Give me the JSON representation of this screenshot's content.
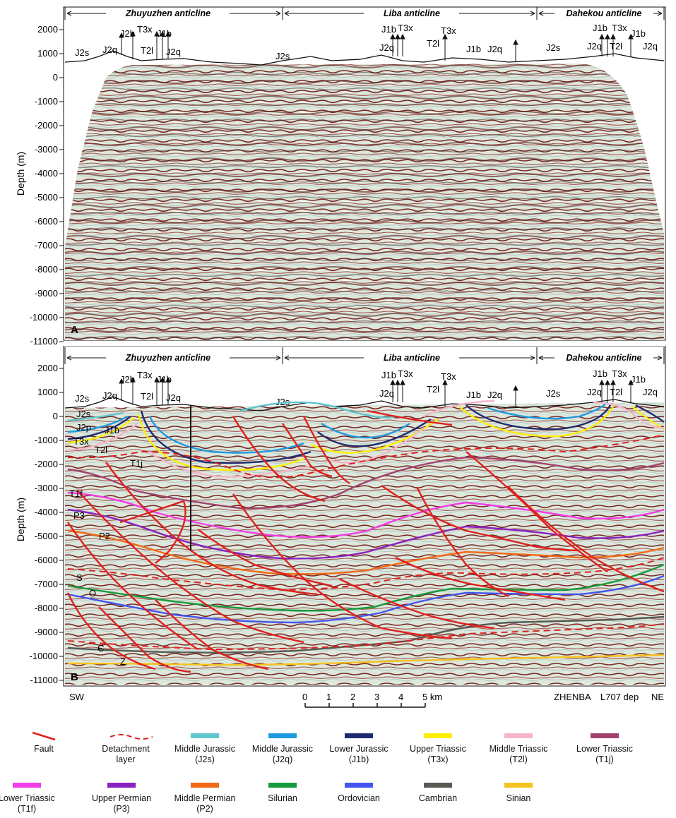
{
  "panels": {
    "a": {
      "letter": "A",
      "anticlines": [
        "Zhuyuzhen anticline",
        "Liba anticline",
        "Dahekou anticline"
      ],
      "strat_labels": [
        "J2s",
        "J2q",
        "J2b",
        "T3x",
        "T2l",
        "J1b",
        "J2q",
        "J2s",
        "J1b",
        "T3x",
        "J2q",
        "T2l",
        "T3x",
        "J1b",
        "J2q",
        "J2s",
        "J1b",
        "T3x",
        "J2q",
        "T2l",
        "J1b",
        "J2q"
      ]
    },
    "b": {
      "letter": "B",
      "anticlines": [
        "Zhuyuzhen anticline",
        "Liba anticline",
        "Dahekou anticline"
      ],
      "strat_labels": [
        "J2s",
        "J2q",
        "J2b",
        "T3x",
        "T2l",
        "J1b",
        "J2q",
        "J2s",
        "J1b",
        "T3x",
        "J2q",
        "T2l",
        "T3x",
        "J1b",
        "J2q",
        "J2s",
        "J1b",
        "T3x",
        "J2q",
        "T2l",
        "J1b",
        "J2q"
      ],
      "horizon_labels": [
        "J2s",
        "J2p",
        "J1b",
        "T3x",
        "T2l",
        "T1j",
        "T1f",
        "P3",
        "P2",
        "S",
        "O",
        "Є",
        "Z"
      ]
    }
  },
  "axis": {
    "ylabel": "Depth (m)",
    "ticks": [
      "2000",
      "1000",
      "0",
      "-1000",
      "-2000",
      "-3000",
      "-4000",
      "-5000",
      "-6000",
      "-7000",
      "-8000",
      "-9000",
      "-10000",
      "-11000"
    ]
  },
  "bottom_labels": {
    "sw": "SW",
    "ne": "NE",
    "zhenba": "ZHENBA",
    "l707": "L707 dep"
  },
  "scale_bar": {
    "ticks": [
      "0",
      "1",
      "2",
      "3",
      "4",
      "5 km"
    ]
  },
  "legend": [
    {
      "line1": "Fault",
      "line2": "",
      "color": "#e0201c",
      "style": "fault"
    },
    {
      "line1": "Detachment",
      "line2": "layer",
      "color": "#e0201c",
      "style": "detachment"
    },
    {
      "line1": "Middle Jurassic",
      "line2": "(J2s)",
      "color": "#5fc5cf",
      "style": "bar"
    },
    {
      "line1": "Middle Jurassic",
      "line2": "(J2q)",
      "color": "#1d9be0",
      "style": "bar"
    },
    {
      "line1": "Lower Jurassic",
      "line2": "(J1b)",
      "color": "#1f2a6e",
      "style": "bar"
    },
    {
      "line1": "Upper Triassic",
      "line2": "(T3x)",
      "color": "#ffee00",
      "style": "bar"
    },
    {
      "line1": "Middle Triassic",
      "line2": "(T2l)",
      "color": "#f4b6c8",
      "style": "bar"
    },
    {
      "line1": "Lower Triassic",
      "line2": "(T1j)",
      "color": "#a0426e",
      "style": "bar"
    },
    {
      "line1": "Lower Triassic",
      "line2": "(T1f)",
      "color": "#f23de8",
      "style": "bar"
    },
    {
      "line1": "Upper Permian",
      "line2": "(P3)",
      "color": "#8a1fc0",
      "style": "bar"
    },
    {
      "line1": "Middle Permian",
      "line2": "(P2)",
      "color": "#f26a16",
      "style": "bar"
    },
    {
      "line1": "Silurian",
      "line2": "",
      "color": "#179a3c",
      "style": "bar"
    },
    {
      "line1": "Ordovician",
      "line2": "",
      "color": "#4455ee",
      "style": "bar"
    },
    {
      "line1": "Cambrian",
      "line2": "",
      "color": "#585a52",
      "style": "bar"
    },
    {
      "line1": "Sinian",
      "line2": "",
      "color": "#f6c21d",
      "style": "bar"
    }
  ]
}
